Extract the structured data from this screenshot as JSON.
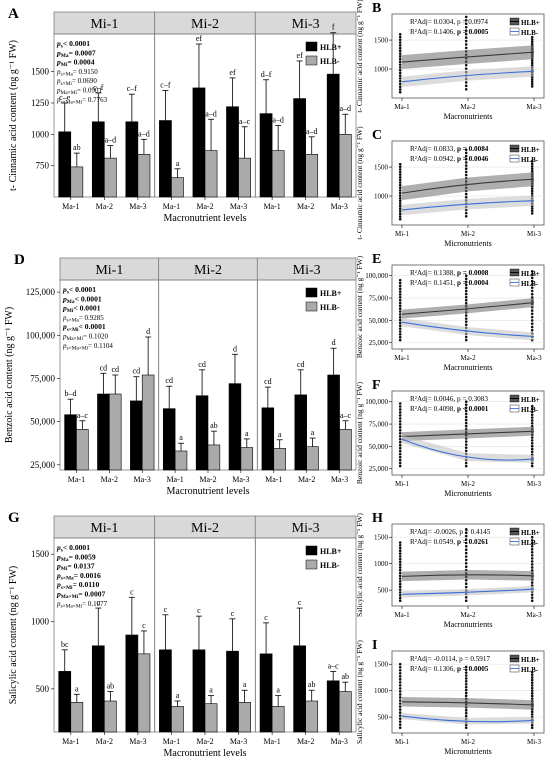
{
  "chart_data": [
    {
      "panel": "A",
      "type": "bar",
      "facets": [
        "Mi-1",
        "Mi-2",
        "Mi-3"
      ],
      "categories": [
        "Ma-1",
        "Ma-2",
        "Ma-3"
      ],
      "series": [
        {
          "name": "HLB+",
          "color": "#000000",
          "values": [
            [
              1020,
              1100,
              1100
            ],
            [
              1110,
              1370,
              1220
            ],
            [
              1165,
              1285,
              1480
            ]
          ],
          "errors": [
            [
              230,
              230,
              220
            ],
            [
              240,
              350,
              230
            ],
            [
              270,
              300,
              330
            ]
          ],
          "letters": [
            [
              "c–e",
              "c–f",
              "c–f"
            ],
            [
              "c–f",
              "ef",
              "ef"
            ],
            [
              "d–f",
              "ef",
              "f"
            ]
          ]
        },
        {
          "name": "HLB-",
          "color": "#aaaaaa",
          "values": [
            [
              740,
              810,
              840
            ],
            [
              655,
              870,
              810
            ],
            [
              870,
              840,
              1000
            ]
          ],
          "errors": [
            [
              110,
              100,
              120
            ],
            [
              70,
              250,
              250
            ],
            [
              200,
              140,
              160
            ]
          ],
          "letters": [
            [
              "ab",
              "a–d",
              "a–d"
            ],
            [
              "a",
              "a–d",
              "a–c"
            ],
            [
              "a–d",
              "a–d",
              "a–d"
            ]
          ]
        }
      ],
      "ylabel": "t- Cinnamic acid content (ng g⁻¹ FW)",
      "xlabel": "Macronutrient levels",
      "yticks": [
        750,
        1000,
        1250,
        1500
      ],
      "ylim": [
        500,
        1800
      ],
      "stats": [
        "p_s< 0.0001",
        "p_Ma= 0.0007",
        "p_Mi= 0.0004",
        "p_s×Ma= 0.9150",
        "p_s×Mi= 0.0690",
        "p_Ma×Mi= 0.0901",
        "p_s×Ma×Mi= 0.7763"
      ],
      "stats_bold": [
        true,
        true,
        true,
        false,
        false,
        false,
        false
      ]
    },
    {
      "panel": "D",
      "type": "bar",
      "facets": [
        "Mi-1",
        "Mi-2",
        "Mi-3"
      ],
      "categories": [
        "Ma-1",
        "Ma-2",
        "Ma-3"
      ],
      "series": [
        {
          "name": "HLB+",
          "color": "#000000",
          "values": [
            [
              54000,
              66000,
              62000
            ],
            [
              57500,
              65000,
              72000
            ],
            [
              58000,
              65500,
              77000
            ]
          ],
          "errors": [
            [
              9000,
              12000,
              14000
            ],
            [
              13000,
              15000,
              17000
            ],
            [
              12000,
              14500,
              15500
            ]
          ],
          "letters": [
            [
              "b–d",
              "cd",
              "cd"
            ],
            [
              "cd",
              "cd",
              "d"
            ],
            [
              "cd",
              "cd",
              "d"
            ]
          ]
        },
        {
          "name": "HLB-",
          "color": "#aaaaaa",
          "values": [
            [
              45500,
              66000,
              77000
            ],
            [
              33000,
              36500,
              35000
            ],
            [
              34500,
              35500,
              45500
            ]
          ],
          "errors": [
            [
              5000,
              11000,
              22000
            ],
            [
              4500,
              8000,
              5000
            ],
            [
              5000,
              5000,
              5000
            ]
          ],
          "letters": [
            [
              "a–c",
              "cd",
              "d"
            ],
            [
              "a",
              "ab",
              "a"
            ],
            [
              "a",
              "a",
              "a–c"
            ]
          ]
        }
      ],
      "ylabel": "Benzoic acid content (ng g⁻¹ FW)",
      "xlabel": "Macronutrient levels",
      "yticks": [
        25000,
        50000,
        75000,
        100000,
        125000
      ],
      "ytick_labels": [
        "25,000",
        "50,000",
        "75,000",
        "100,000",
        "125,000"
      ],
      "ylim": [
        22000,
        132000
      ],
      "stats": [
        "p_s< 0.0001",
        "p_Ma< 0.0001",
        "p_Mi< 0.0001",
        "p_s×Ma= 0.9285",
        "p_s×Mi< 0.0001",
        "p_Ma×Mi= 0.1020",
        "p_s×Ma×Mi= 0.1104"
      ],
      "stats_bold": [
        true,
        true,
        true,
        false,
        true,
        false,
        false
      ]
    },
    {
      "panel": "G",
      "type": "bar",
      "facets": [
        "Mi-1",
        "Mi-2",
        "Mi-3"
      ],
      "categories": [
        "Ma-1",
        "Ma-2",
        "Ma-3"
      ],
      "series": [
        {
          "name": "HLB+",
          "color": "#000000",
          "values": [
            [
              630,
              820,
              900
            ],
            [
              790,
              790,
              780
            ],
            [
              760,
              820,
              560
            ]
          ],
          "errors": [
            [
              160,
              280,
              280
            ],
            [
              260,
              250,
              240
            ],
            [
              230,
              280,
              70
            ]
          ],
          "letters": [
            [
              "bc",
              "c",
              "c"
            ],
            [
              "c",
              "c",
              "c"
            ],
            [
              "c",
              "c",
              "a–c"
            ]
          ]
        },
        {
          "name": "HLB-",
          "color": "#aaaaaa",
          "values": [
            [
              400,
              410,
              760
            ],
            [
              370,
              390,
              400
            ],
            [
              370,
              410,
              480
            ]
          ],
          "errors": [
            [
              60,
              70,
              170
            ],
            [
              40,
              60,
              90
            ],
            [
              80,
              80,
              70
            ]
          ],
          "letters": [
            [
              "a",
              "ab",
              "c"
            ],
            [
              "a",
              "a",
              "a"
            ],
            [
              "a",
              "ab",
              "ab"
            ]
          ]
        }
      ],
      "ylabel": "Salicylic acid content (ng g⁻¹ FW)",
      "xlabel": "Macronutrient levels",
      "yticks": [
        500,
        1000,
        1500
      ],
      "ylim": [
        180,
        1620
      ],
      "stats": [
        "p_s< 0.0001",
        "p_Ma= 0.0059",
        "p_Mi= 0.0137",
        "p_s×Ma= 0.0016",
        "p_s×Mi= 0.0110",
        "p_Ma×Mi= 0.0007",
        "p_s×Ma×Mi= 0.1077"
      ],
      "stats_bold": [
        true,
        true,
        true,
        true,
        true,
        true,
        false
      ]
    },
    {
      "panel": "B",
      "type": "scatter",
      "categories": [
        "Ma-1",
        "Ma-2",
        "Ma-3"
      ],
      "xlabel": "Macronutrients",
      "ylabel": "t- Cinnamic acid content (ng g⁻¹ FW)",
      "yticks": [
        1000,
        1500
      ],
      "ylim": [
        500,
        1950
      ],
      "r2": [
        "R²Adj= 0.0304, p = 0.0974",
        "R²Adj= 0.1406, p = 0.0005"
      ],
      "r2_bold_p": [
        false,
        true
      ],
      "fits": [
        {
          "name": "HLB+",
          "y": [
            1120,
            1210,
            1290
          ],
          "band": 120
        },
        {
          "name": "HLB-",
          "y": [
            780,
            890,
            960
          ],
          "band": 90
        }
      ],
      "point_range": [
        [
          600,
          1600
        ],
        [
          650,
          1900
        ],
        [
          700,
          1550
        ]
      ]
    },
    {
      "panel": "C",
      "type": "scatter",
      "categories": [
        "Mi-1",
        "Mi-2",
        "Mi-3"
      ],
      "xlabel": "Micronutrients",
      "ylabel": "t- Cinnamic acid content (ng g⁻¹ FW)",
      "yticks": [
        1000,
        1500
      ],
      "ylim": [
        500,
        1950
      ],
      "r2": [
        "R²Adj= 0.0833, p = 0.0084",
        "R²Adj= 0.0942, p = 0.0046"
      ],
      "r2_bold_p": [
        true,
        true
      ],
      "fits": [
        {
          "name": "HLB+",
          "y": [
            1050,
            1200,
            1290
          ],
          "band": 120
        },
        {
          "name": "HLB-",
          "y": [
            760,
            860,
            920
          ],
          "band": 90
        }
      ],
      "point_range": [
        [
          600,
          1550
        ],
        [
          650,
          1800
        ],
        [
          700,
          1600
        ]
      ]
    },
    {
      "panel": "E",
      "type": "scatter",
      "categories": [
        "Ma-1",
        "Ma-2",
        "Ma-3"
      ],
      "xlabel": "Macronutrients",
      "ylabel": "Benzoic acid content (ng g⁻¹ FW)",
      "yticks": [
        25000,
        50000,
        75000,
        100000
      ],
      "ytick_labels": [
        "25,000",
        "50,000",
        "75,000",
        "100,000"
      ],
      "ylim": [
        18000,
        112000
      ],
      "r2": [
        "R²Adj= 0.1388, p = 0.0008",
        "R²Adj= 0.1451, p = 0.0004"
      ],
      "r2_bold_p": [
        true,
        true
      ],
      "fits": [
        {
          "name": "HLB+",
          "y": [
            57000,
            63000,
            70000
          ],
          "band": 5000
        },
        {
          "name": "HLB-",
          "y": [
            48000,
            38000,
            32000
          ],
          "band": 4500
        }
      ],
      "point_range": [
        [
          28000,
          95000
        ],
        [
          28000,
          100000
        ],
        [
          28000,
          105000
        ]
      ]
    },
    {
      "panel": "F",
      "type": "scatter",
      "categories": [
        "Mi-1",
        "Mi-2",
        "Mi-3"
      ],
      "xlabel": "Micronutrients",
      "ylabel": "Benzoic acid content (ng g⁻¹ FW)",
      "yticks": [
        25000,
        50000,
        75000,
        100000
      ],
      "ytick_labels": [
        "25,000",
        "50,000",
        "75,000",
        "100,000"
      ],
      "ylim": [
        18000,
        112000
      ],
      "r2": [
        "R²Adj= 0.0046, p = 0.3083",
        "R²Adj= 0.4098, p < 0.0001"
      ],
      "r2_bold_p": [
        false,
        true
      ],
      "fits": [
        {
          "name": "HLB+",
          "y": [
            61000,
            64000,
            67000
          ],
          "band": 5000
        },
        {
          "name": "HLB-",
          "y": [
            58000,
            38000,
            36000
          ],
          "band": 4500
        }
      ],
      "point_range": [
        [
          28000,
          98000
        ],
        [
          28000,
          100000
        ],
        [
          28000,
          95000
        ]
      ]
    },
    {
      "panel": "H",
      "type": "scatter",
      "categories": [
        "Ma-1",
        "Ma-2",
        "Ma-3"
      ],
      "xlabel": "Macronutrients",
      "ylabel": "Salicylic acid content (ng g⁻¹ FW)",
      "yticks": [
        500,
        1000,
        1500
      ],
      "ylim": [
        200,
        1750
      ],
      "r2": [
        "R²Adj= -0.0026, p = 0.4145",
        "R²Adj= 0.0549, p = 0.0261"
      ],
      "r2_bold_p": [
        false,
        true
      ],
      "fits": [
        {
          "name": "HLB+",
          "y": [
            760,
            790,
            770
          ],
          "band": 90
        },
        {
          "name": "HLB-",
          "y": [
            420,
            460,
            520
          ],
          "band": 60
        }
      ],
      "point_range": [
        [
          300,
          1400
        ],
        [
          300,
          1650
        ],
        [
          300,
          1500
        ]
      ]
    },
    {
      "panel": "I",
      "type": "scatter",
      "categories": [
        "Mi-1",
        "Mi-2",
        "Mi-3"
      ],
      "xlabel": "Micronutrients",
      "ylabel": "Salicylic acid content (ng g⁻¹ FW)",
      "yticks": [
        500,
        1000,
        1500
      ],
      "ylim": [
        200,
        1750
      ],
      "r2": [
        "R²Adj= -0.0114, p = 0.5917",
        "R²Adj= 0.1306, p = 0.0005"
      ],
      "r2_bold_p": [
        false,
        true
      ],
      "fits": [
        {
          "name": "HLB+",
          "y": [
            790,
            770,
            730
          ],
          "band": 90
        },
        {
          "name": "HLB-",
          "y": [
            520,
            420,
            440
          ],
          "band": 60
        }
      ],
      "point_range": [
        [
          300,
          1500
        ],
        [
          300,
          1450
        ],
        [
          300,
          1350
        ]
      ]
    }
  ]
}
